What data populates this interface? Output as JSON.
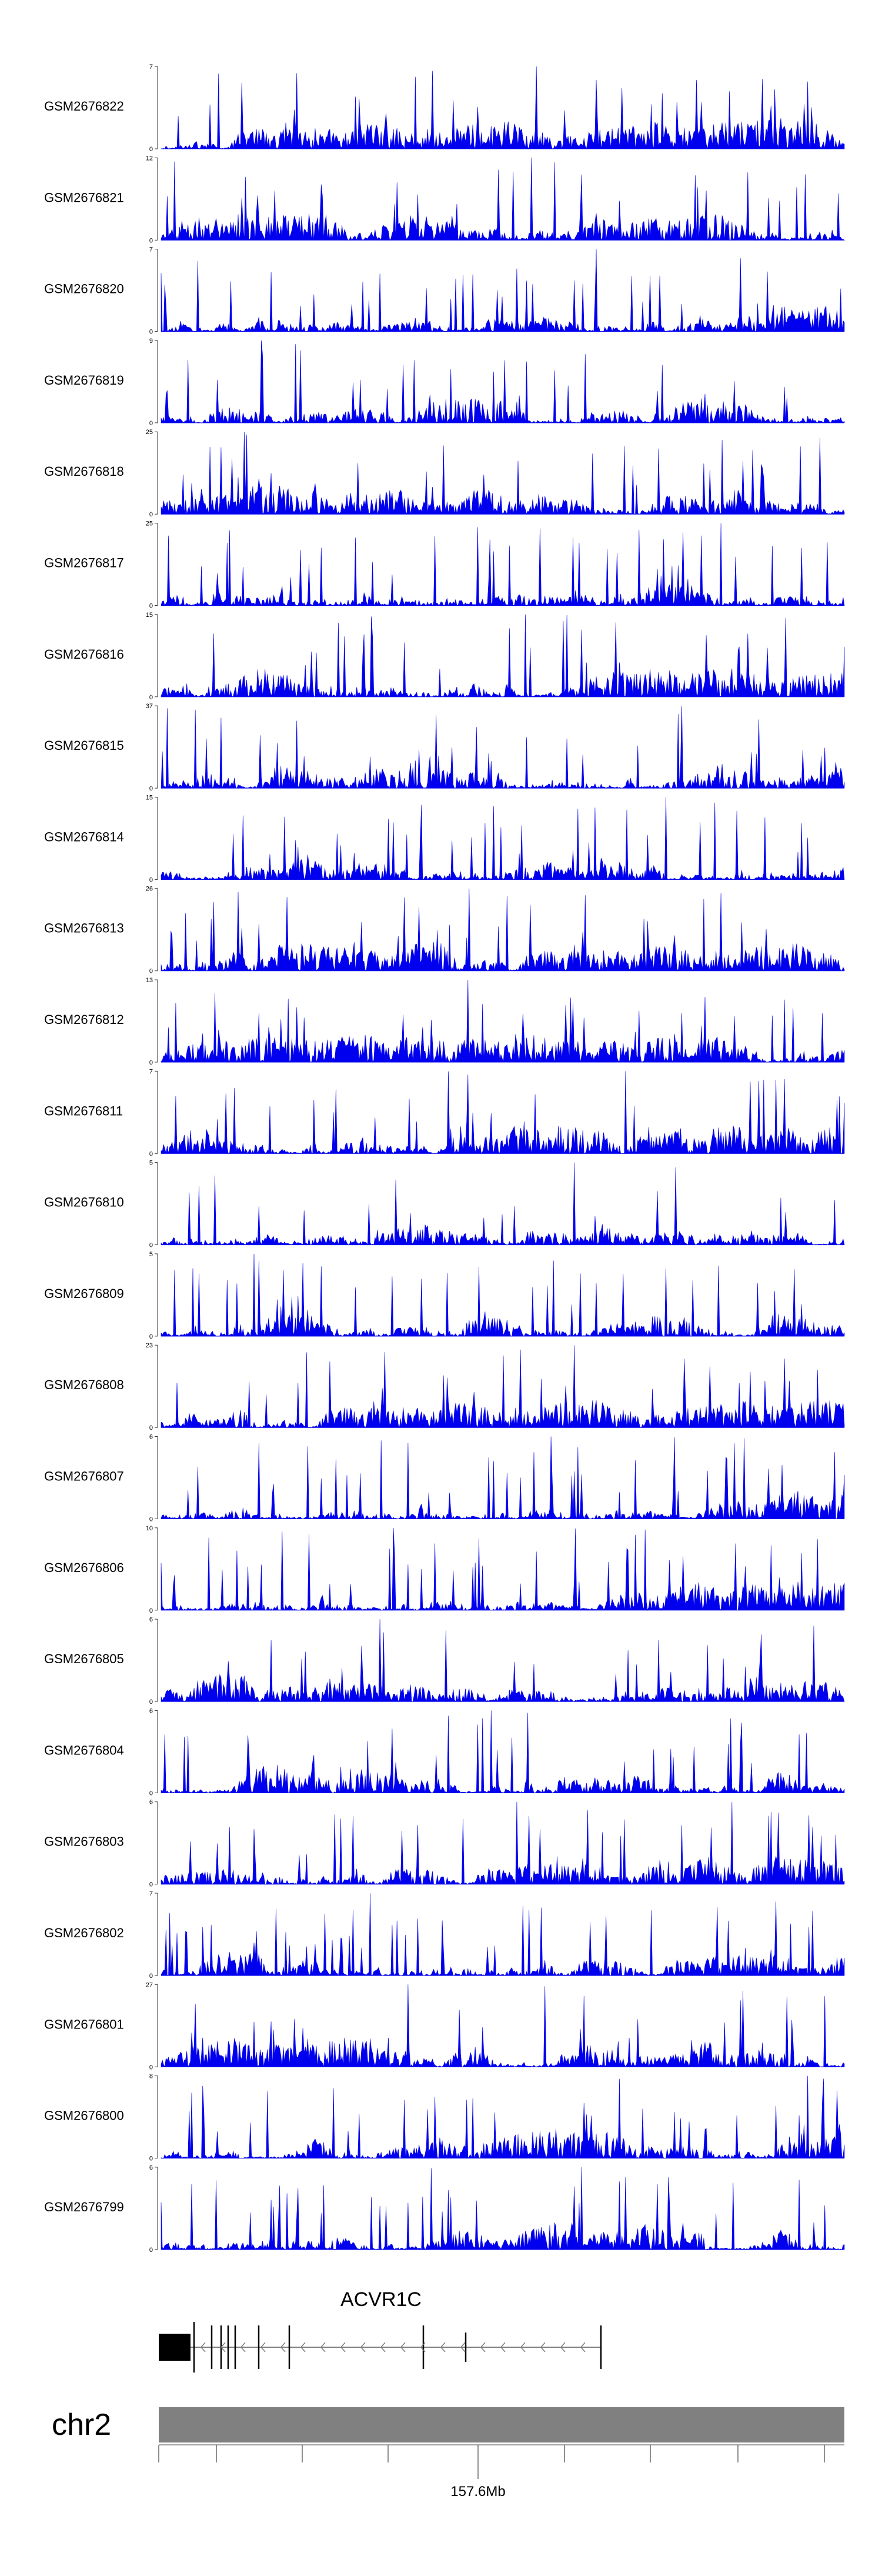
{
  "chart_data": {
    "type": "area",
    "tracks": [
      {
        "name": "GSM2676822",
        "ymin": "0",
        "ymax": "7",
        "seed": 22
      },
      {
        "name": "GSM2676821",
        "ymin": "0",
        "ymax": "12",
        "seed": 21
      },
      {
        "name": "GSM2676820",
        "ymin": "0",
        "ymax": "7",
        "seed": 20
      },
      {
        "name": "GSM2676819",
        "ymin": "0",
        "ymax": "9",
        "seed": 19
      },
      {
        "name": "GSM2676818",
        "ymin": "0",
        "ymax": "25",
        "seed": 18
      },
      {
        "name": "GSM2676817",
        "ymin": "0",
        "ymax": "25",
        "seed": 17
      },
      {
        "name": "GSM2676816",
        "ymin": "0",
        "ymax": "15",
        "seed": 16
      },
      {
        "name": "GSM2676815",
        "ymin": "0",
        "ymax": "37",
        "seed": 15
      },
      {
        "name": "GSM2676814",
        "ymin": "0",
        "ymax": "15",
        "seed": 14
      },
      {
        "name": "GSM2676813",
        "ymin": "0",
        "ymax": "26",
        "seed": 13
      },
      {
        "name": "GSM2676812",
        "ymin": "0",
        "ymax": "13",
        "seed": 12
      },
      {
        "name": "GSM2676811",
        "ymin": "0",
        "ymax": "7",
        "seed": 11
      },
      {
        "name": "GSM2676810",
        "ymin": "0",
        "ymax": "5",
        "seed": 10
      },
      {
        "name": "GSM2676809",
        "ymin": "0",
        "ymax": "5",
        "seed": 9
      },
      {
        "name": "GSM2676808",
        "ymin": "0",
        "ymax": "23",
        "seed": 8
      },
      {
        "name": "GSM2676807",
        "ymin": "0",
        "ymax": "6",
        "seed": 7
      },
      {
        "name": "GSM2676806",
        "ymin": "0",
        "ymax": "10",
        "seed": 6
      },
      {
        "name": "GSM2676805",
        "ymin": "0",
        "ymax": "6",
        "seed": 5
      },
      {
        "name": "GSM2676804",
        "ymin": "0",
        "ymax": "6",
        "seed": 4
      },
      {
        "name": "GSM2676803",
        "ymin": "0",
        "ymax": "6",
        "seed": 3
      },
      {
        "name": "GSM2676802",
        "ymin": "0",
        "ymax": "7",
        "seed": 2
      },
      {
        "name": "GSM2676801",
        "ymin": "0",
        "ymax": "27",
        "seed": 1
      },
      {
        "name": "GSM2676800",
        "ymin": "0",
        "ymax": "8",
        "seed": 100
      },
      {
        "name": "GSM2676799",
        "ymin": "0",
        "ymax": "6",
        "seed": 99
      }
    ],
    "gene": {
      "name": "ACVR1C",
      "strand": "-"
    },
    "chromosome": "chr2",
    "axis_tick_label": "157.6Mb",
    "track_color": "#0000ee",
    "ideogram_color": "#808080"
  }
}
